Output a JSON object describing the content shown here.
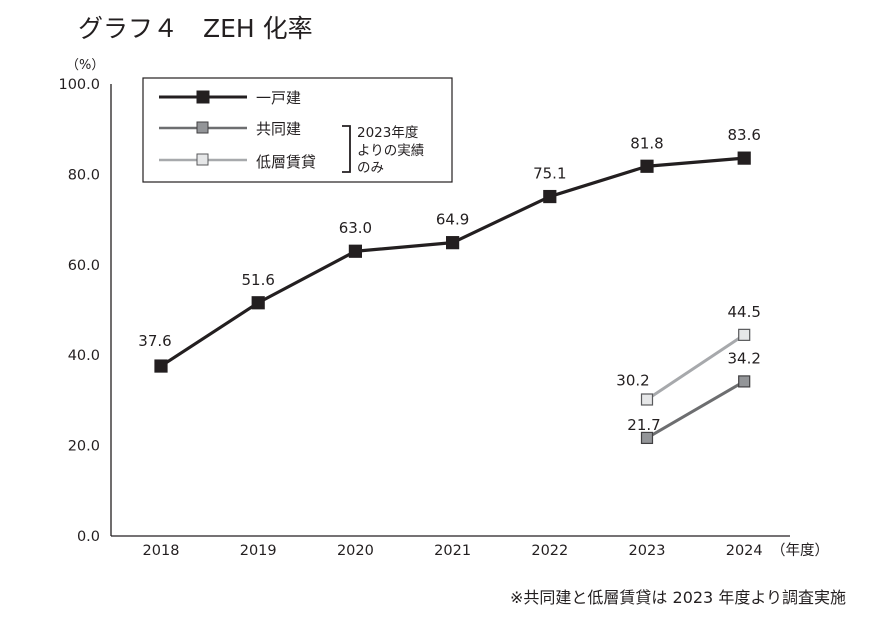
{
  "chart_data": {
    "type": "line",
    "title": "グラフ４　ZEH 化率",
    "ylabel": "（%）",
    "xlabel": "（年度）",
    "ylim": [
      0,
      100
    ],
    "yticks": [
      "0.0",
      "20.0",
      "40.0",
      "60.0",
      "80.0",
      "100.0"
    ],
    "ytick_values": [
      0,
      20,
      40,
      60,
      80,
      100
    ],
    "grid": false,
    "categories": [
      "2018",
      "2019",
      "2020",
      "2021",
      "2022",
      "2023",
      "2024"
    ],
    "series": [
      {
        "name": "一戸建",
        "color": "#231f20",
        "marker_fill": "#231f20",
        "values": [
          37.6,
          51.6,
          63.0,
          64.9,
          75.1,
          81.8,
          83.6
        ],
        "labels": [
          "37.6",
          "51.6",
          "63.0",
          "64.9",
          "75.1",
          "81.8",
          "83.6"
        ]
      },
      {
        "name": "共同建",
        "color": "#6d6e70",
        "marker_fill": "#939598",
        "values": [
          null,
          null,
          null,
          null,
          null,
          21.7,
          34.2
        ],
        "labels": [
          "",
          "",
          "",
          "",
          "",
          "21.7",
          "34.2"
        ]
      },
      {
        "name": "低層賃貸",
        "color": "#a7a9ac",
        "marker_fill": "#e6e7e8",
        "values": [
          null,
          null,
          null,
          null,
          null,
          30.2,
          44.5
        ],
        "labels": [
          "",
          "",
          "",
          "",
          "",
          "30.2",
          "44.5"
        ]
      }
    ],
    "legend": {
      "placement": "top-left",
      "bracket_note_lines": [
        "2023年度",
        "よりの実績",
        "のみ"
      ]
    },
    "footnote": "※共同建と低層賃貸は 2023 年度より調査実施"
  }
}
